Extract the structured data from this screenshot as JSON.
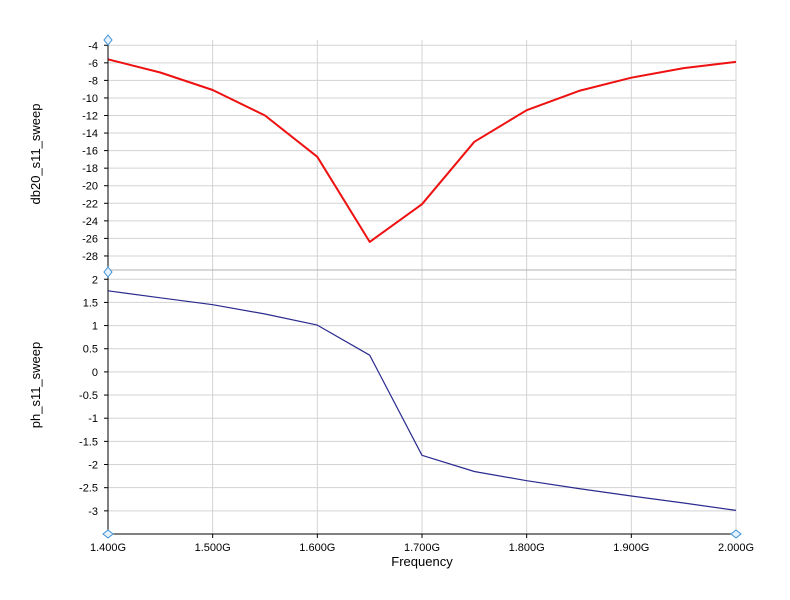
{
  "chart_data": {
    "type": "line",
    "xlabel": "Frequency",
    "x_ticks": [
      "1.400G",
      "1.500G",
      "1.600G",
      "1.700G",
      "1.800G",
      "1.900G",
      "2.000G"
    ],
    "x_tick_values": [
      1.4,
      1.5,
      1.6,
      1.7,
      1.8,
      1.9,
      2.0
    ],
    "xlim": [
      1.4,
      2.0
    ],
    "grid": true,
    "plots": [
      {
        "ylabel": "db20_s11_sweep",
        "ylim": [
          -29.6,
          -3.4
        ],
        "y_ticks": [
          "-4",
          "-6",
          "-8",
          "-10",
          "-12",
          "-14",
          "-16",
          "-18",
          "-20",
          "-22",
          "-24",
          "-26",
          "-28"
        ],
        "y_tick_values": [
          -4,
          -6,
          -8,
          -10,
          -12,
          -14,
          -16,
          -18,
          -20,
          -22,
          -24,
          -26,
          -28
        ],
        "series": [
          {
            "color": "#ee1111",
            "x": [
              1.4,
              1.45,
              1.5,
              1.55,
              1.6,
              1.65,
              1.7,
              1.75,
              1.8,
              1.85,
              1.9,
              1.95,
              2.0
            ],
            "values": [
              -5.6,
              -7.1,
              -9.1,
              -12.0,
              -16.7,
              -26.4,
              -22.1,
              -15.0,
              -11.4,
              -9.2,
              -7.7,
              -6.6,
              -5.9
            ]
          }
        ]
      },
      {
        "ylabel": "ph_s11_sweep",
        "ylim": [
          -3.5,
          2.2
        ],
        "y_ticks": [
          "2",
          "1.5",
          "1",
          "0.5",
          "0",
          "-0.5",
          "-1",
          "-1.5",
          "-2",
          "-2.5",
          "-3"
        ],
        "y_tick_values": [
          2,
          1.5,
          1,
          0.5,
          0,
          -0.5,
          -1,
          -1.5,
          -2,
          -2.5,
          -3
        ],
        "series": [
          {
            "color": "#2b2b8f",
            "x": [
              1.4,
              1.45,
              1.5,
              1.55,
              1.6,
              1.65,
              1.7,
              1.75,
              1.8,
              1.85,
              1.9,
              1.95,
              2.0
            ],
            "values": [
              1.75,
              1.6,
              1.45,
              1.25,
              1.01,
              0.36,
              -1.8,
              -2.15,
              -2.35,
              -2.52,
              -2.68,
              -2.83,
              -2.99
            ]
          }
        ]
      }
    ]
  }
}
